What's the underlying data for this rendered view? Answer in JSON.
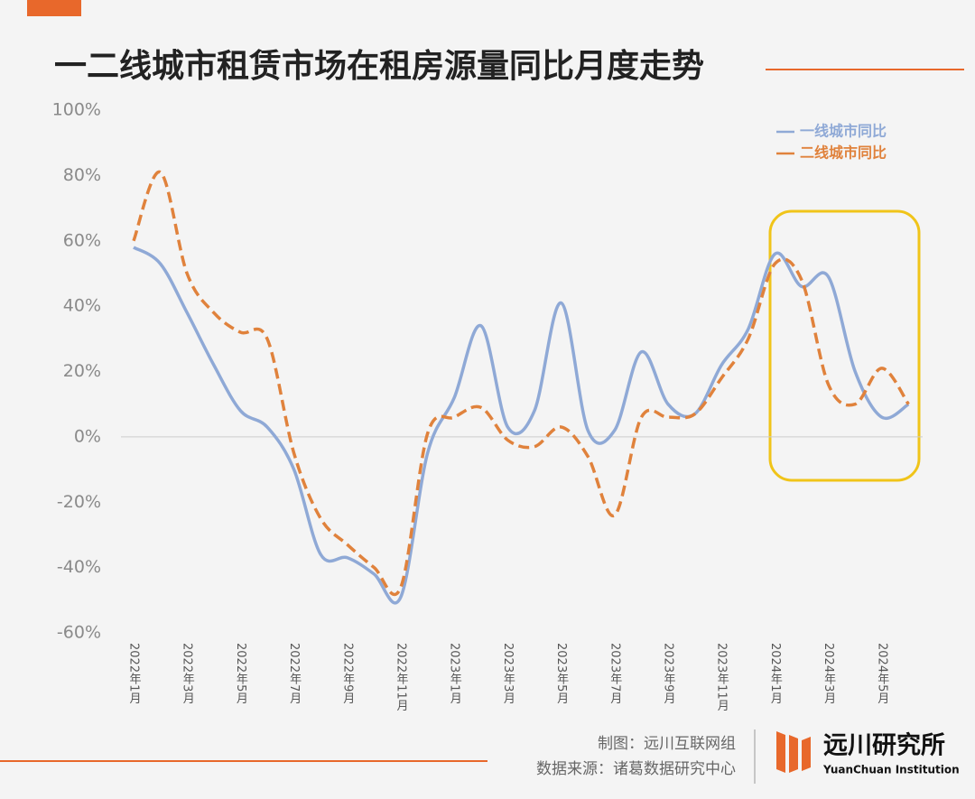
{
  "chart_data": {
    "type": "line",
    "title": "一二线城市租赁市场在租房源量同比月度走势",
    "categories": [
      "2022年1月",
      null,
      "2022年3月",
      null,
      "2022年5月",
      null,
      "2022年7月",
      null,
      "2022年9月",
      null,
      "2022年11月",
      null,
      "2023年1月",
      null,
      "2023年3月",
      null,
      "2023年5月",
      null,
      "2023年7月",
      null,
      "2023年9月",
      null,
      "2023年11月",
      null,
      "2024年1月",
      null,
      "2024年3月",
      null,
      "2024年5月",
      null
    ],
    "series": [
      {
        "name": "一线城市同比",
        "color": "#8fa9d6",
        "dash": false,
        "values": [
          58,
          53,
          38,
          22,
          8,
          3,
          -10,
          -36,
          -37,
          -42,
          -49,
          -5,
          12,
          34,
          3,
          8,
          41,
          2,
          2,
          26,
          10,
          7,
          22,
          33,
          56,
          46,
          49,
          20,
          6,
          10
        ]
      },
      {
        "name": "二线城市同比",
        "color": "#e0823c",
        "dash": true,
        "values": [
          60,
          81,
          50,
          38,
          32,
          30,
          -5,
          -25,
          -33,
          -40,
          -46,
          1,
          6,
          9,
          -1,
          -3,
          3,
          -6,
          -24,
          6,
          6,
          7,
          18,
          30,
          53,
          48,
          16,
          10,
          21,
          10
        ]
      }
    ],
    "ylim": [
      -60,
      100
    ],
    "yticks": [
      {
        "value": -60,
        "label": "-60%"
      },
      {
        "value": -40,
        "label": "-40%"
      },
      {
        "value": -20,
        "label": "-20%"
      },
      {
        "value": 0,
        "label": "0%"
      },
      {
        "value": 20,
        "label": "20%"
      },
      {
        "value": 40,
        "label": "40%"
      },
      {
        "value": 60,
        "label": "60%"
      },
      {
        "value": 80,
        "label": "80%"
      },
      {
        "value": 100,
        "label": "100%"
      }
    ],
    "legend": "top-right"
  },
  "footer": {
    "credit": "制图：远川互联网组",
    "source": "数据来源：诸葛数据研究中心",
    "brand": "远川研究所",
    "brand_en": "YuanChuan Institution"
  }
}
